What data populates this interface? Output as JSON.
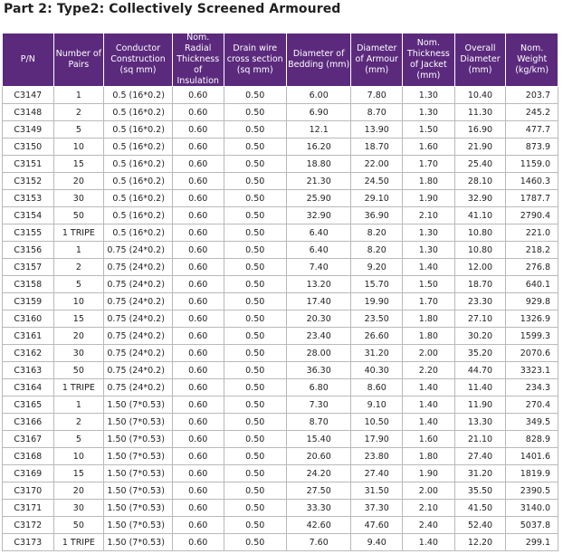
{
  "title": "Part 2: Type2: Collectively Screened Armoured",
  "headers": [
    "P/N",
    "Number of Pairs",
    "Conductor Construction (sq mm)",
    "Nom. Radial Thickness of Insulation",
    "Drain wire cross section (sq mm)",
    "Diameter of Bedding (mm)",
    "Diameter of Armour (mm)",
    "Nom. Thickness of Jacket (mm)",
    "Overall Diameter (mm)",
    "Nom. Weight (kg/km)"
  ],
  "rows": [
    [
      "C3147",
      "1",
      "0.5 (16*0.2)",
      "0.60",
      "0.50",
      "6.00",
      "7.80",
      "1.30",
      "10.40",
      "203.7"
    ],
    [
      "C3148",
      "2",
      "0.5 (16*0.2)",
      "0.60",
      "0.50",
      "6.90",
      "8.70",
      "1.30",
      "11.30",
      "245.2"
    ],
    [
      "C3149",
      "5",
      "0.5 (16*0.2)",
      "0.60",
      "0.50",
      "12.1",
      "13.90",
      "1.50",
      "16.90",
      "477.7"
    ],
    [
      "C3150",
      "10",
      "0.5 (16*0.2)",
      "0.60",
      "0.50",
      "16.20",
      "18.70",
      "1.60",
      "21.90",
      "873.9"
    ],
    [
      "C3151",
      "15",
      "0.5 (16*0.2)",
      "0.60",
      "0.50",
      "18.80",
      "22.00",
      "1.70",
      "25.40",
      "1159.0"
    ],
    [
      "C3152",
      "20",
      "0.5 (16*0.2)",
      "0.60",
      "0.50",
      "21.30",
      "24.50",
      "1.80",
      "28.10",
      "1460.3"
    ],
    [
      "C3153",
      "30",
      "0.5 (16*0.2)",
      "0.60",
      "0.50",
      "25.90",
      "29.10",
      "1.90",
      "32.90",
      "1787.7"
    ],
    [
      "C3154",
      "50",
      "0.5 (16*0.2)",
      "0.60",
      "0.50",
      "32.90",
      "36.90",
      "2.10",
      "41.10",
      "2790.4"
    ],
    [
      "C3155",
      "1 TRIPE",
      "0.5 (16*0.2)",
      "0.60",
      "0.50",
      "6.40",
      "8.20",
      "1.30",
      "10.80",
      "221.0"
    ],
    [
      "C3156",
      "1",
      "0.75 (24*0.2)",
      "0.60",
      "0.50",
      "6.40",
      "8.20",
      "1.30",
      "10.80",
      "218.2"
    ],
    [
      "C3157",
      "2",
      "0.75 (24*0.2)",
      "0.60",
      "0.50",
      "7.40",
      "9.20",
      "1.40",
      "12.00",
      "276.8"
    ],
    [
      "C3158",
      "5",
      "0.75 (24*0.2)",
      "0.60",
      "0.50",
      "13.20",
      "15.70",
      "1.50",
      "18.70",
      "640.1"
    ],
    [
      "C3159",
      "10",
      "0.75 (24*0.2)",
      "0.60",
      "0.50",
      "17.40",
      "19.90",
      "1.70",
      "23.30",
      "929.8"
    ],
    [
      "C3160",
      "15",
      "0.75 (24*0.2)",
      "0.60",
      "0.50",
      "20.30",
      "23.50",
      "1.80",
      "27.10",
      "1326.9"
    ],
    [
      "C3161",
      "20",
      "0.75 (24*0.2)",
      "0.60",
      "0.50",
      "23.40",
      "26.60",
      "1.80",
      "30.20",
      "1599.3"
    ],
    [
      "C3162",
      "30",
      "0.75 (24*0.2)",
      "0.60",
      "0.50",
      "28.00",
      "31.20",
      "2.00",
      "35.20",
      "2070.6"
    ],
    [
      "C3163",
      "50",
      "0.75 (24*0.2)",
      "0.60",
      "0.50",
      "36.30",
      "40.30",
      "2.20",
      "44.70",
      "3323.1"
    ],
    [
      "C3164",
      "1 TRIPE",
      "0.75 (24*0.2)",
      "0.60",
      "0.50",
      "6.80",
      "8.60",
      "1.40",
      "11.40",
      "234.3"
    ],
    [
      "C3165",
      "1",
      "1.50 (7*0.53)",
      "0.60",
      "0.50",
      "7.30",
      "9.10",
      "1.40",
      "11.90",
      "270.4"
    ],
    [
      "C3166",
      "2",
      "1.50 (7*0.53)",
      "0.60",
      "0.50",
      "8.70",
      "10.50",
      "1.40",
      "13.30",
      "349.5"
    ],
    [
      "C3167",
      "5",
      "1.50 (7*0.53)",
      "0.60",
      "0.50",
      "15.40",
      "17.90",
      "1.60",
      "21.10",
      "828.9"
    ],
    [
      "C3168",
      "10",
      "1.50 (7*0.53)",
      "0.60",
      "0.50",
      "20.60",
      "23.80",
      "1.80",
      "27.40",
      "1401.6"
    ],
    [
      "C3169",
      "15",
      "1.50 (7*0.53)",
      "0.60",
      "0.50",
      "24.20",
      "27.40",
      "1.90",
      "31.20",
      "1819.9"
    ],
    [
      "C3170",
      "20",
      "1.50 (7*0.53)",
      "0.60",
      "0.50",
      "27.50",
      "31.50",
      "2.00",
      "35.50",
      "2390.5"
    ],
    [
      "C3171",
      "30",
      "1.50 (7*0.53)",
      "0.60",
      "0.50",
      "33.30",
      "37.30",
      "2.10",
      "41.50",
      "3140.0"
    ],
    [
      "C3172",
      "50",
      "1.50 (7*0.53)",
      "0.60",
      "0.50",
      "42.60",
      "47.60",
      "2.40",
      "52.40",
      "5037.8"
    ],
    [
      "C3173",
      "1 TRIPE",
      "1.50 (7*0.53)",
      "0.60",
      "0.50",
      "7.60",
      "9.40",
      "1.40",
      "12.20",
      "299.1"
    ]
  ]
}
